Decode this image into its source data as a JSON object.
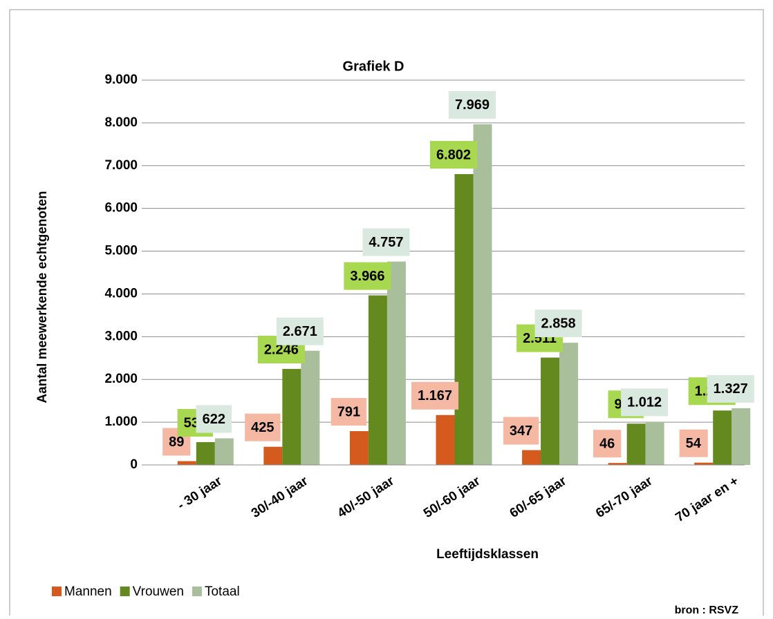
{
  "chart_data": {
    "type": "bar",
    "title": "Grafiek D",
    "x_label": "Leeftijdsklassen",
    "y_label": "Aantal meewerkende echtgenoten",
    "source": "bron : RSVZ",
    "categories": [
      "- 30 jaar",
      "30/-40 jaar",
      "40/-50 jaar",
      "50/-60 jaar",
      "60/-65 jaar",
      "65/-70 jaar",
      "70 jaar en +"
    ],
    "series": [
      {
        "name": "Mannen",
        "color": "#d55a1e",
        "label_color": "#f5b9a3",
        "values": [
          89,
          425,
          791,
          1167,
          347,
          46,
          54
        ],
        "value_labels": [
          "89",
          "425",
          "791",
          "1.167",
          "347",
          "46",
          "54"
        ]
      },
      {
        "name": "Vrouwen",
        "color": "#64891e",
        "label_color": "#a8d84f",
        "values": [
          533,
          2246,
          3966,
          6802,
          2511,
          966,
          1273
        ],
        "value_labels": [
          "533",
          "2.246",
          "3.966",
          "6.802",
          "2.511",
          "966",
          "1.273"
        ]
      },
      {
        "name": "Totaal",
        "color": "#a9bf9c",
        "label_color": "#dae9df",
        "values": [
          622,
          2671,
          4757,
          7969,
          2858,
          1012,
          1327
        ],
        "value_labels": [
          "622",
          "2.671",
          "4.757",
          "7.969",
          "2.858",
          "1.012",
          "1.327"
        ]
      }
    ],
    "ylim": [
      0,
      9000
    ],
    "yticks": [
      0,
      {
        "value": 1000,
        "label": "1.000"
      },
      {
        "value": 2000,
        "label": "2.000"
      },
      {
        "value": 3000,
        "label": "3.000"
      },
      {
        "value": 4000,
        "label": "4.000"
      },
      {
        "value": 5000,
        "label": "5.000"
      },
      {
        "value": 6000,
        "label": "6.000"
      },
      {
        "value": 7000,
        "label": "7.000"
      },
      {
        "value": 8000,
        "label": "8.000"
      },
      {
        "value": 9000,
        "label": "9.000"
      }
    ],
    "grid": true,
    "legend": "bottom-left"
  }
}
